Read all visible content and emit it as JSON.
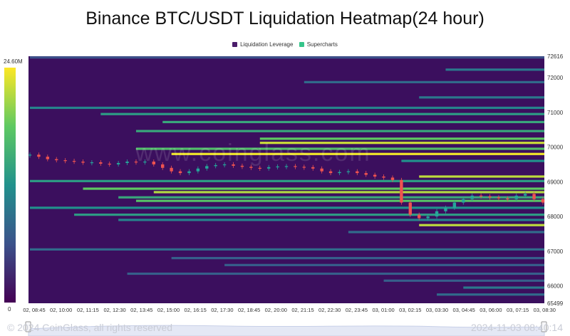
{
  "title": "Binance BTC/USDT Liquidation Heatmap(24 hour)",
  "legend": [
    {
      "label": "Liquidation Leverage",
      "color": "#4b1d6b"
    },
    {
      "label": "Supercharts",
      "color": "#35c48a"
    }
  ],
  "colorbar": {
    "max_label": "24.60M",
    "min_label": "0"
  },
  "watermark": "www.coinglass.com",
  "footer": {
    "copyright": "© 2024 CoinGlass, all rights reserved",
    "timestamp": "2024-11-03 08:40:14"
  },
  "colors": {
    "bg": "#3b0f5e",
    "up": "#26a69a",
    "down": "#ef5350"
  },
  "chart_data": {
    "type": "heatmap",
    "title": "Binance BTC/USDT Liquidation Heatmap(24 hour)",
    "y_ticks": [
      72616,
      72000,
      71000,
      70000,
      69000,
      68000,
      67000,
      66000,
      65499
    ],
    "ylim": [
      65499,
      72616
    ],
    "x_ticks": [
      "02, 08:45",
      "02, 10:00",
      "02, 11:15",
      "02, 12:30",
      "02, 13:45",
      "02, 15:00",
      "02, 16:15",
      "02, 17:30",
      "02, 18:45",
      "02, 20:00",
      "02, 21:15",
      "02, 22:30",
      "02, 23:45",
      "03, 01:00",
      "03, 02:15",
      "03, 03:30",
      "03, 04:45",
      "03, 06:00",
      "03, 07:15",
      "03, 08:30"
    ],
    "price_series": [
      [
        0,
        69780
      ],
      [
        1,
        69720
      ],
      [
        2,
        69650
      ],
      [
        3,
        69620
      ],
      [
        4,
        69600
      ],
      [
        5,
        69580
      ],
      [
        6,
        69550
      ],
      [
        7,
        69560
      ],
      [
        8,
        69520
      ],
      [
        9,
        69500
      ],
      [
        10,
        69540
      ],
      [
        11,
        69580
      ],
      [
        12,
        69560
      ],
      [
        13,
        69580
      ],
      [
        14,
        69500
      ],
      [
        15,
        69400
      ],
      [
        16,
        69300
      ],
      [
        17,
        69250
      ],
      [
        18,
        69300
      ],
      [
        19,
        69380
      ],
      [
        20,
        69450
      ],
      [
        21,
        69480
      ],
      [
        22,
        69500
      ],
      [
        23,
        69460
      ],
      [
        24,
        69430
      ],
      [
        25,
        69400
      ],
      [
        26,
        69380
      ],
      [
        27,
        69420
      ],
      [
        28,
        69440
      ],
      [
        29,
        69450
      ],
      [
        30,
        69430
      ],
      [
        31,
        69420
      ],
      [
        32,
        69380
      ],
      [
        33,
        69300
      ],
      [
        34,
        69250
      ],
      [
        35,
        69280
      ],
      [
        36,
        69300
      ],
      [
        37,
        69250
      ],
      [
        38,
        69200
      ],
      [
        39,
        69150
      ],
      [
        40,
        69120
      ],
      [
        41,
        69050
      ],
      [
        42,
        68400
      ],
      [
        43,
        68050
      ],
      [
        44,
        67950
      ],
      [
        45,
        68000
      ],
      [
        46,
        68150
      ],
      [
        47,
        68250
      ],
      [
        48,
        68400
      ],
      [
        49,
        68500
      ],
      [
        50,
        68600
      ],
      [
        51,
        68580
      ],
      [
        52,
        68550
      ],
      [
        53,
        68520
      ],
      [
        54,
        68500
      ],
      [
        55,
        68600
      ],
      [
        56,
        68650
      ],
      [
        57,
        68500
      ],
      [
        58,
        68400
      ]
    ],
    "liquidation_bands": [
      {
        "price": 72580,
        "from": 0,
        "intensity": 0.25
      },
      {
        "price": 72230,
        "from": 47,
        "intensity": 0.4
      },
      {
        "price": 71870,
        "from": 31,
        "intensity": 0.35
      },
      {
        "price": 71430,
        "from": 44,
        "intensity": 0.4
      },
      {
        "price": 71130,
        "from": 0,
        "intensity": 0.45
      },
      {
        "price": 70950,
        "from": 8,
        "intensity": 0.55
      },
      {
        "price": 70720,
        "from": 15,
        "intensity": 0.6
      },
      {
        "price": 70460,
        "from": 12,
        "intensity": 0.6
      },
      {
        "price": 70240,
        "from": 26,
        "intensity": 0.75
      },
      {
        "price": 70120,
        "from": 26,
        "intensity": 0.92
      },
      {
        "price": 69950,
        "from": 12,
        "intensity": 0.7
      },
      {
        "price": 69800,
        "from": 16,
        "intensity": 0.98
      },
      {
        "price": 69600,
        "from": 42,
        "intensity": 0.5
      },
      {
        "price": 69150,
        "from": 44,
        "intensity": 0.9
      },
      {
        "price": 69020,
        "from": 0,
        "intensity": 0.55
      },
      {
        "price": 68800,
        "from": 6,
        "intensity": 0.75
      },
      {
        "price": 68700,
        "from": 14,
        "intensity": 0.88
      },
      {
        "price": 68550,
        "from": 10,
        "intensity": 0.6
      },
      {
        "price": 68450,
        "from": 12,
        "intensity": 0.72
      },
      {
        "price": 68250,
        "from": 0,
        "intensity": 0.5
      },
      {
        "price": 68050,
        "from": 5,
        "intensity": 0.55
      },
      {
        "price": 67900,
        "from": 10,
        "intensity": 0.45
      },
      {
        "price": 67750,
        "from": 44,
        "intensity": 0.9
      },
      {
        "price": 67550,
        "from": 36,
        "intensity": 0.35
      },
      {
        "price": 67050,
        "from": 0,
        "intensity": 0.35
      },
      {
        "price": 66800,
        "from": 16,
        "intensity": 0.3
      },
      {
        "price": 66600,
        "from": 22,
        "intensity": 0.3
      },
      {
        "price": 66350,
        "from": 11,
        "intensity": 0.3
      },
      {
        "price": 66150,
        "from": 40,
        "intensity": 0.3
      },
      {
        "price": 65950,
        "from": 49,
        "intensity": 0.4
      },
      {
        "price": 65750,
        "from": 46,
        "intensity": 0.35
      }
    ],
    "legend": [
      "Liquidation Leverage",
      "Supercharts"
    ]
  }
}
